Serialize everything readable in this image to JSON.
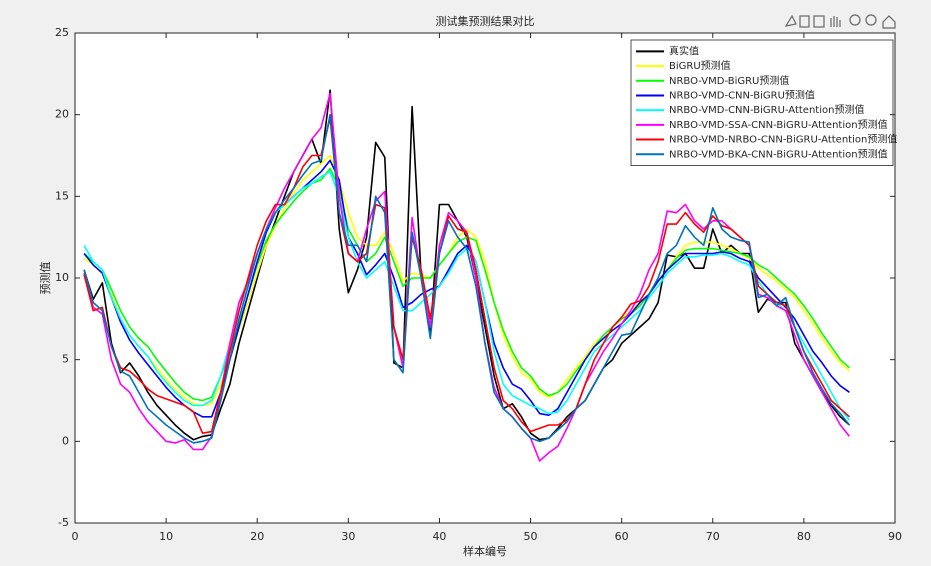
{
  "chart_data": {
    "type": "line",
    "title": "测试集预测结果对比",
    "x_label": "样本编号",
    "y_label": "预测值",
    "x": [
      1,
      2,
      3,
      4,
      5,
      6,
      7,
      8,
      9,
      10,
      11,
      12,
      13,
      14,
      15,
      16,
      17,
      18,
      19,
      20,
      21,
      22,
      23,
      24,
      25,
      26,
      27,
      28,
      29,
      30,
      31,
      32,
      33,
      34,
      35,
      36,
      37,
      38,
      39,
      40,
      41,
      42,
      43,
      44,
      45,
      46,
      47,
      48,
      49,
      50,
      51,
      52,
      53,
      54,
      55,
      56,
      57,
      58,
      59,
      60,
      61,
      62,
      63,
      64,
      65,
      66,
      67,
      68,
      69,
      70,
      71,
      72,
      73,
      74,
      75,
      76,
      77,
      78,
      79,
      80,
      81,
      82,
      83,
      84,
      85
    ],
    "xlim": [
      0,
      90
    ],
    "xticks": [
      0,
      10,
      20,
      30,
      40,
      50,
      60,
      70,
      80,
      90
    ],
    "ylim": [
      -5,
      25
    ],
    "yticks": [
      -5,
      0,
      5,
      10,
      15,
      20,
      25
    ],
    "grid": false,
    "legend_position": "northeast",
    "series": [
      {
        "name": "真实值",
        "color": "#000000",
        "values": [
          10.5,
          8.7,
          9.7,
          6,
          4.2,
          4.8,
          4,
          3,
          2.2,
          1.6,
          1,
          0.5,
          0.1,
          0.3,
          0.4,
          2,
          3.5,
          6,
          8,
          10,
          12,
          13.5,
          15,
          16.5,
          17.5,
          18.5,
          17,
          21.5,
          13,
          9.1,
          10.5,
          12.5,
          18.3,
          17.4,
          4.8,
          4.5,
          20.5,
          10,
          6.5,
          14.5,
          14.5,
          13.5,
          12.5,
          10,
          7,
          4,
          2,
          2.3,
          1.5,
          0.5,
          0.1,
          0.2,
          0.8,
          1.5,
          2,
          2.5,
          3.5,
          4.5,
          5,
          6,
          6.5,
          7,
          7.5,
          8.5,
          11.4,
          11.3,
          11.5,
          10.6,
          10.6,
          13,
          11.5,
          12,
          11.5,
          11.5,
          7.9,
          8.7,
          8.5,
          8.5,
          6,
          5,
          4,
          3,
          2.2,
          1.5,
          1
        ]
      },
      {
        "name": "BiGRU预测值",
        "color": "#ffff00",
        "values": [
          11.2,
          10.8,
          10.3,
          9,
          7.5,
          6.5,
          5.8,
          5.2,
          4.5,
          3.8,
          3.2,
          2.7,
          2.3,
          2.2,
          2.3,
          3.5,
          5,
          6.8,
          8.5,
          10.3,
          12,
          13.2,
          14.3,
          15.2,
          16,
          16.5,
          17,
          17.5,
          16,
          14,
          12.5,
          12,
          12,
          12.8,
          11.5,
          9.8,
          10.3,
          10.2,
          10,
          10.8,
          11.5,
          12.5,
          13,
          12.5,
          11,
          8.5,
          6.5,
          5.2,
          4.2,
          3.8,
          3,
          2.7,
          3,
          3.8,
          4.5,
          5.2,
          6,
          6.5,
          7,
          7.5,
          8,
          8.5,
          9,
          9.8,
          10.5,
          11.3,
          12,
          12.2,
          12.2,
          12.2,
          12,
          11.8,
          11.5,
          11.2,
          10.6,
          10.2,
          9.8,
          9.3,
          8.8,
          8,
          7.2,
          6.3,
          5.5,
          4.8,
          4.3
        ]
      },
      {
        "name": "NRBO-VMD-BiGRU预测值",
        "color": "#00ff00",
        "values": [
          11.5,
          11,
          10.5,
          9.3,
          8,
          7,
          6.3,
          5.8,
          5,
          4.3,
          3.6,
          3,
          2.6,
          2.5,
          2.7,
          4,
          5.5,
          7.2,
          9,
          10.8,
          12.3,
          13.3,
          14,
          14.7,
          15.3,
          15.8,
          16,
          16.7,
          15.5,
          13,
          12,
          11,
          11.5,
          12.5,
          11,
          9.5,
          10,
          10,
          10,
          10.8,
          11.5,
          12.2,
          12.5,
          12.3,
          10.5,
          8.5,
          6.8,
          5.5,
          4.5,
          4,
          3.2,
          2.8,
          3,
          3.5,
          4.3,
          5,
          5.8,
          6.5,
          7,
          7.5,
          7.8,
          8.3,
          9,
          9.8,
          10.5,
          11.2,
          11.7,
          11.8,
          11.8,
          11.8,
          11.7,
          11.6,
          11.5,
          11.3,
          10.8,
          10.5,
          10,
          9.5,
          9,
          8.3,
          7.5,
          6.6,
          5.8,
          5,
          4.5
        ]
      },
      {
        "name": "NRBO-VMD-CNN-BiGRU预测值",
        "color": "#0000ff",
        "values": [
          11.5,
          10.8,
          10.3,
          8.8,
          7.3,
          6.2,
          5.4,
          4.7,
          4,
          3.3,
          2.7,
          2.2,
          1.8,
          1.5,
          1.5,
          3,
          5,
          7,
          9,
          11,
          12.8,
          14,
          14.5,
          15,
          15.5,
          16,
          16.5,
          17.2,
          16,
          12.5,
          11.5,
          10.2,
          10.8,
          11.5,
          10,
          8.2,
          8.5,
          9,
          9.3,
          9.5,
          10.5,
          11.5,
          12,
          11,
          8.5,
          6,
          4.5,
          3.5,
          3.2,
          2.5,
          1.7,
          1.6,
          2,
          3,
          4,
          5,
          5.8,
          6.3,
          6.8,
          7.2,
          7.8,
          8.5,
          9,
          9.8,
          10.5,
          11,
          11.5,
          11.5,
          11.5,
          11.5,
          11.6,
          11.5,
          11.2,
          11,
          10,
          9.4,
          8.8,
          8.2,
          7.5,
          6.5,
          5.5,
          4.8,
          4,
          3.4,
          3
        ]
      },
      {
        "name": "NRBO-VMD-CNN-BiGRU-Attention预测值",
        "color": "#00ffff",
        "values": [
          12,
          11,
          10.5,
          8.8,
          7.5,
          6.5,
          5.8,
          5.2,
          4.3,
          3.6,
          3,
          2.5,
          2.2,
          2.2,
          2.5,
          4,
          6,
          8,
          9.8,
          11.5,
          13,
          14,
          14.5,
          15,
          15.5,
          15.8,
          16.2,
          16.5,
          15,
          12.5,
          11,
          10,
          10.5,
          11,
          9.5,
          8,
          8,
          8.5,
          9,
          9.5,
          10.3,
          11.3,
          11.8,
          11,
          8.5,
          5.5,
          3.5,
          2.8,
          2.5,
          2.2,
          2,
          1.7,
          1.8,
          2.5,
          3.5,
          4.5,
          5.5,
          6,
          6.5,
          7,
          7.5,
          8,
          8.8,
          9.5,
          10.3,
          10.8,
          11.3,
          11.3,
          11.4,
          11.4,
          11.5,
          11.3,
          11,
          10.8,
          9.8,
          9,
          8.5,
          8,
          7,
          6,
          5,
          4,
          3,
          2,
          1.3
        ]
      },
      {
        "name": "NRBO-VMD-SSA-CNN-BiGRU-Attention预测值",
        "color": "#ff00ff",
        "values": [
          10.3,
          8.2,
          7.8,
          5,
          3.5,
          3,
          2,
          1.2,
          0.6,
          0,
          -0.1,
          0.1,
          -0.5,
          -0.5,
          0.3,
          3,
          6,
          8.5,
          9.8,
          11.5,
          13,
          14.3,
          15.5,
          16.5,
          17.5,
          18.5,
          19.2,
          21.3,
          15,
          11.5,
          11,
          13,
          14.7,
          15.3,
          7,
          4.5,
          13.7,
          10,
          7,
          12,
          14,
          13.5,
          12.8,
          10,
          6,
          3.3,
          2,
          1.5,
          0.8,
          0.2,
          -1.2,
          -0.7,
          -0.3,
          0.8,
          2,
          3.5,
          4.5,
          5.5,
          6.3,
          7.2,
          8,
          9,
          10.5,
          11.5,
          14.1,
          14,
          14.5,
          13.5,
          13,
          13.5,
          13.5,
          13,
          12.5,
          12,
          9,
          8.8,
          8.3,
          8,
          6.5,
          5,
          4,
          3,
          2,
          1,
          0.3
        ]
      },
      {
        "name": "NRBO-VMD-NRBO-CNN-BiGRU-Attention预测值",
        "color": "#ff0000",
        "values": [
          10.2,
          8,
          8.2,
          5.8,
          4.5,
          4.3,
          3.8,
          3.2,
          2.8,
          2.6,
          2.4,
          2.2,
          1.8,
          0.5,
          0.6,
          3,
          5.5,
          8,
          10,
          12,
          13.5,
          14.5,
          14.5,
          15.5,
          16.8,
          17.5,
          17.5,
          19.8,
          14,
          11.5,
          11,
          11.5,
          14.5,
          14.3,
          7,
          5,
          12.5,
          10.5,
          7.5,
          11.5,
          13.8,
          13,
          12.8,
          10.5,
          7.5,
          4.5,
          2.5,
          2,
          1.2,
          0.6,
          0.8,
          1,
          1,
          1.3,
          2,
          3.5,
          5,
          6,
          7,
          7.6,
          8.4,
          8.6,
          9.5,
          11,
          13.3,
          13.3,
          14,
          13.3,
          12.8,
          13.8,
          13.2,
          13,
          12.5,
          12,
          9.5,
          9,
          8.5,
          8.3,
          7,
          5.5,
          4.5,
          3.5,
          2.5,
          2,
          1.5
        ]
      },
      {
        "name": "NRBO-VMD-BKA-CNN-BiGRU-Attention预测值",
        "color": "#0072bd",
        "values": [
          10.5,
          8.5,
          8,
          5.8,
          4.3,
          4,
          3,
          2,
          1.5,
          1,
          0.6,
          0.2,
          -0.1,
          0,
          0.2,
          2.5,
          5,
          7.5,
          9.5,
          11.5,
          13,
          14,
          14.8,
          15.5,
          16.3,
          17,
          17.2,
          20,
          14,
          12,
          12,
          11,
          15,
          14,
          5,
          4.2,
          12.8,
          10,
          6.3,
          11.5,
          13.5,
          12.5,
          11.8,
          9.5,
          6,
          3,
          2,
          1.5,
          0.8,
          0.2,
          0,
          0.2,
          0.7,
          1.2,
          2,
          2.5,
          3.5,
          4.5,
          5.5,
          6.5,
          6.6,
          7.8,
          9,
          10,
          11.5,
          12,
          13.2,
          12.5,
          12,
          14.3,
          13,
          12.5,
          12.3,
          12.2,
          8.8,
          9,
          8.3,
          8.8,
          7,
          5.5,
          4.2,
          3.2,
          2.3,
          1.7,
          1
        ]
      }
    ]
  }
}
